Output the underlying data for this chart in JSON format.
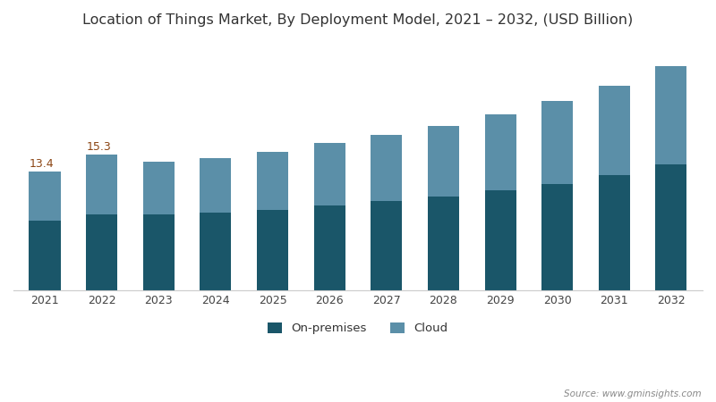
{
  "years": [
    "2021",
    "2022",
    "2023",
    "2024",
    "2025",
    "2026",
    "2027",
    "2028",
    "2029",
    "2030",
    "2031",
    "2032"
  ],
  "on_premises": [
    7.8,
    8.5,
    8.5,
    8.7,
    9.0,
    9.5,
    10.0,
    10.5,
    11.2,
    12.0,
    13.0,
    14.2
  ],
  "cloud": [
    5.6,
    6.8,
    6.0,
    6.2,
    6.6,
    7.1,
    7.5,
    8.0,
    8.6,
    9.3,
    10.0,
    11.0
  ],
  "on_premises_color": "#1a5669",
  "cloud_color": "#5b8fa8",
  "background_color": "#ffffff",
  "title": "Location of Things Market, By Deployment Model, 2021 – 2032, (USD Billion)",
  "title_fontsize": 11.5,
  "annotation_2021": "13.4",
  "annotation_2022": "15.3",
  "legend_labels": [
    "On-premises",
    "Cloud"
  ],
  "source_text": "Source: www.gminsights.com",
  "ylim": [
    0,
    28
  ],
  "bar_width": 0.55
}
